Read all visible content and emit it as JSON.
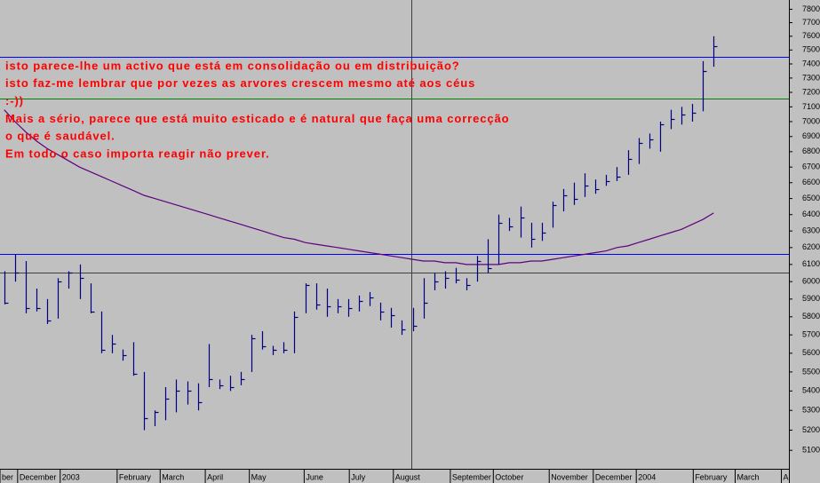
{
  "chart_data": {
    "type": "ohlc",
    "log_scale": true,
    "bar_color": "#000080",
    "high": [
      6060,
      6160,
      6120,
      5960,
      5900,
      6020,
      6060,
      6100,
      5990,
      5830,
      5700,
      5620,
      5660,
      5500,
      5300,
      5420,
      5460,
      5450,
      5440,
      5650,
      5460,
      5480,
      5500,
      5700,
      5720,
      5640,
      5660,
      5830,
      5990,
      5990,
      5960,
      5900,
      5900,
      5920,
      5940,
      5880,
      5850,
      5780,
      5850,
      6020,
      6050,
      6060,
      6080,
      6020,
      6150,
      6250,
      6400,
      6380,
      6450,
      6350,
      6350,
      6480,
      6560,
      6600,
      6660,
      6620,
      6650,
      6700,
      6810,
      6890,
      6920,
      7000,
      7080,
      7100,
      7120,
      7420,
      7600
    ],
    "low": [
      5870,
      6000,
      5820,
      5830,
      5760,
      5790,
      5960,
      5900,
      5820,
      5600,
      5600,
      5560,
      5480,
      5200,
      5220,
      5250,
      5290,
      5330,
      5300,
      5420,
      5410,
      5400,
      5430,
      5500,
      5620,
      5590,
      5600,
      5600,
      5820,
      5840,
      5800,
      5820,
      5800,
      5830,
      5860,
      5780,
      5740,
      5700,
      5720,
      5790,
      5950,
      5960,
      5990,
      5950,
      6000,
      6050,
      6100,
      6300,
      6260,
      6200,
      6240,
      6320,
      6420,
      6460,
      6510,
      6530,
      6580,
      6610,
      6650,
      6720,
      6820,
      6800,
      6950,
      6980,
      7000,
      7070,
      7380
    ],
    "close": [
      5880,
      6050,
      5850,
      5850,
      5780,
      6000,
      6050,
      6020,
      5830,
      5620,
      5650,
      5590,
      5490,
      5260,
      5290,
      5360,
      5400,
      5400,
      5340,
      5460,
      5430,
      5420,
      5460,
      5680,
      5640,
      5620,
      5620,
      5800,
      5980,
      5870,
      5860,
      5860,
      5850,
      5890,
      5910,
      5830,
      5810,
      5730,
      5750,
      5880,
      6000,
      6020,
      6010,
      5980,
      6120,
      6080,
      6350,
      6330,
      6380,
      6250,
      6290,
      6460,
      6520,
      6500,
      6580,
      6560,
      6610,
      6640,
      6750,
      6860,
      6880,
      6980,
      7020,
      7050,
      7060,
      7350,
      7530
    ],
    "moving_average": {
      "color": "#600080",
      "values": [
        7080,
        7000,
        6930,
        6870,
        6820,
        6780,
        6740,
        6700,
        6670,
        6640,
        6610,
        6580,
        6550,
        6520,
        6500,
        6480,
        6460,
        6440,
        6420,
        6400,
        6380,
        6360,
        6340,
        6320,
        6300,
        6280,
        6260,
        6250,
        6230,
        6220,
        6210,
        6200,
        6190,
        6180,
        6170,
        6160,
        6150,
        6140,
        6130,
        6120,
        6120,
        6110,
        6110,
        6100,
        6100,
        6100,
        6100,
        6110,
        6110,
        6120,
        6120,
        6130,
        6140,
        6150,
        6160,
        6170,
        6180,
        6200,
        6210,
        6230,
        6250,
        6270,
        6290,
        6310,
        6340,
        6370,
        6410
      ]
    },
    "hlines": [
      {
        "value": 7450,
        "color": "#0000ff"
      },
      {
        "value": 7160,
        "color": "#008000"
      },
      {
        "value": 6160,
        "color": "#0000ff"
      },
      {
        "value": 6050,
        "color": "#404040"
      }
    ],
    "ylim": [
      5010,
      7870
    ],
    "yticks": [
      5100,
      5200,
      5300,
      5400,
      5500,
      5600,
      5700,
      5800,
      5900,
      6000,
      6100,
      6200,
      6300,
      6400,
      6500,
      6600,
      6700,
      6800,
      6900,
      7000,
      7100,
      7200,
      7300,
      7400,
      7500,
      7600,
      7700,
      7800
    ],
    "xlim": [
      -0.4,
      73
    ],
    "xticks": [
      {
        "value": -0.4,
        "label": "ber"
      },
      {
        "value": 1.24,
        "label": "December"
      },
      {
        "value": 5.2,
        "label": "2003"
      },
      {
        "value": 10.5,
        "label": "February"
      },
      {
        "value": 14.5,
        "label": "March"
      },
      {
        "value": 18.7,
        "label": "April"
      },
      {
        "value": 22.8,
        "label": "May"
      },
      {
        "value": 27.9,
        "label": "June"
      },
      {
        "value": 32.1,
        "label": "July"
      },
      {
        "value": 36.2,
        "label": "August"
      },
      {
        "value": 41.5,
        "label": "September"
      },
      {
        "value": 45.5,
        "label": "October"
      },
      {
        "value": 50.7,
        "label": "November"
      },
      {
        "value": 54.8,
        "label": "December"
      },
      {
        "value": 58.8,
        "label": "2004"
      },
      {
        "value": 64.1,
        "label": "February"
      },
      {
        "value": 68.0,
        "label": "March"
      },
      {
        "value": 72.3,
        "label": "A"
      }
    ],
    "annotation_color": "#ff0000",
    "annotations": [
      "isto parece-lhe um activo que está em consolidação ou em distribuição?",
      "isto faz-me lembrar que por vezes as arvores crescem mesmo até aos céus",
      ":-))",
      "Mais a sério, parece que está muito esticado e é natural que faça uma correcção",
      "o que é saudável.",
      "Em todo o caso importa reagir não prever."
    ]
  }
}
